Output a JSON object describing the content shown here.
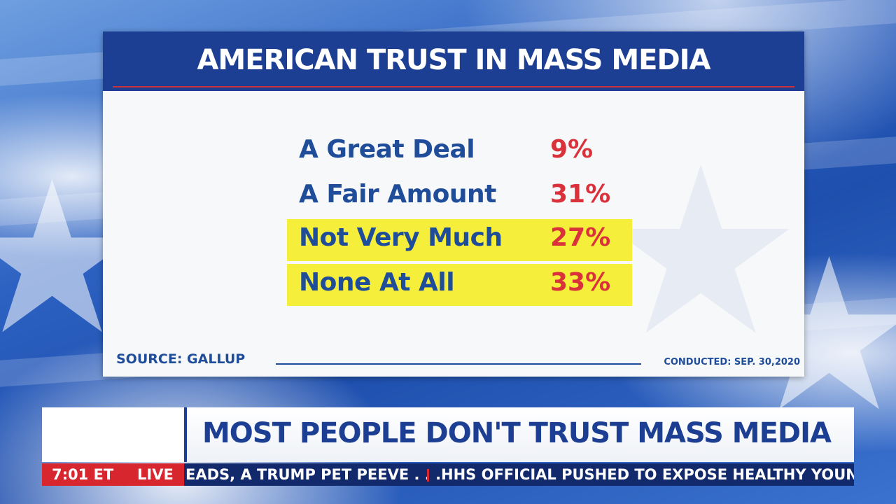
{
  "background": {
    "theme": "american-flag",
    "colors": {
      "flag_blue": "#2d62c2",
      "card_header": "#1c3f93",
      "accent_red": "#d9323b",
      "highlight": "#f5ef3c"
    }
  },
  "card": {
    "title": "AMERICAN TRUST IN MASS MEDIA",
    "rows": [
      {
        "label": "A Great Deal",
        "value": "9%",
        "highlighted": false
      },
      {
        "label": "A Fair Amount",
        "value": "31%",
        "highlighted": false
      },
      {
        "label": "Not Very Much",
        "value": "27%",
        "highlighted": true
      },
      {
        "label": "None At All",
        "value": "33%",
        "highlighted": true
      }
    ],
    "source": "SOURCE: GALLUP",
    "conducted": "CONDUCTED: SEP. 30,2020"
  },
  "lower_third": {
    "headline": "MOST PEOPLE DON'T TRUST MASS MEDIA",
    "time": "7:01 ET",
    "live": "LIVE",
    "ticker": [
      "EADS, A TRUMP PET PEEVE . . .",
      "HHS OFFICIAL PUSHED TO EXPOSE HEALTHY YOUNG P"
    ]
  }
}
